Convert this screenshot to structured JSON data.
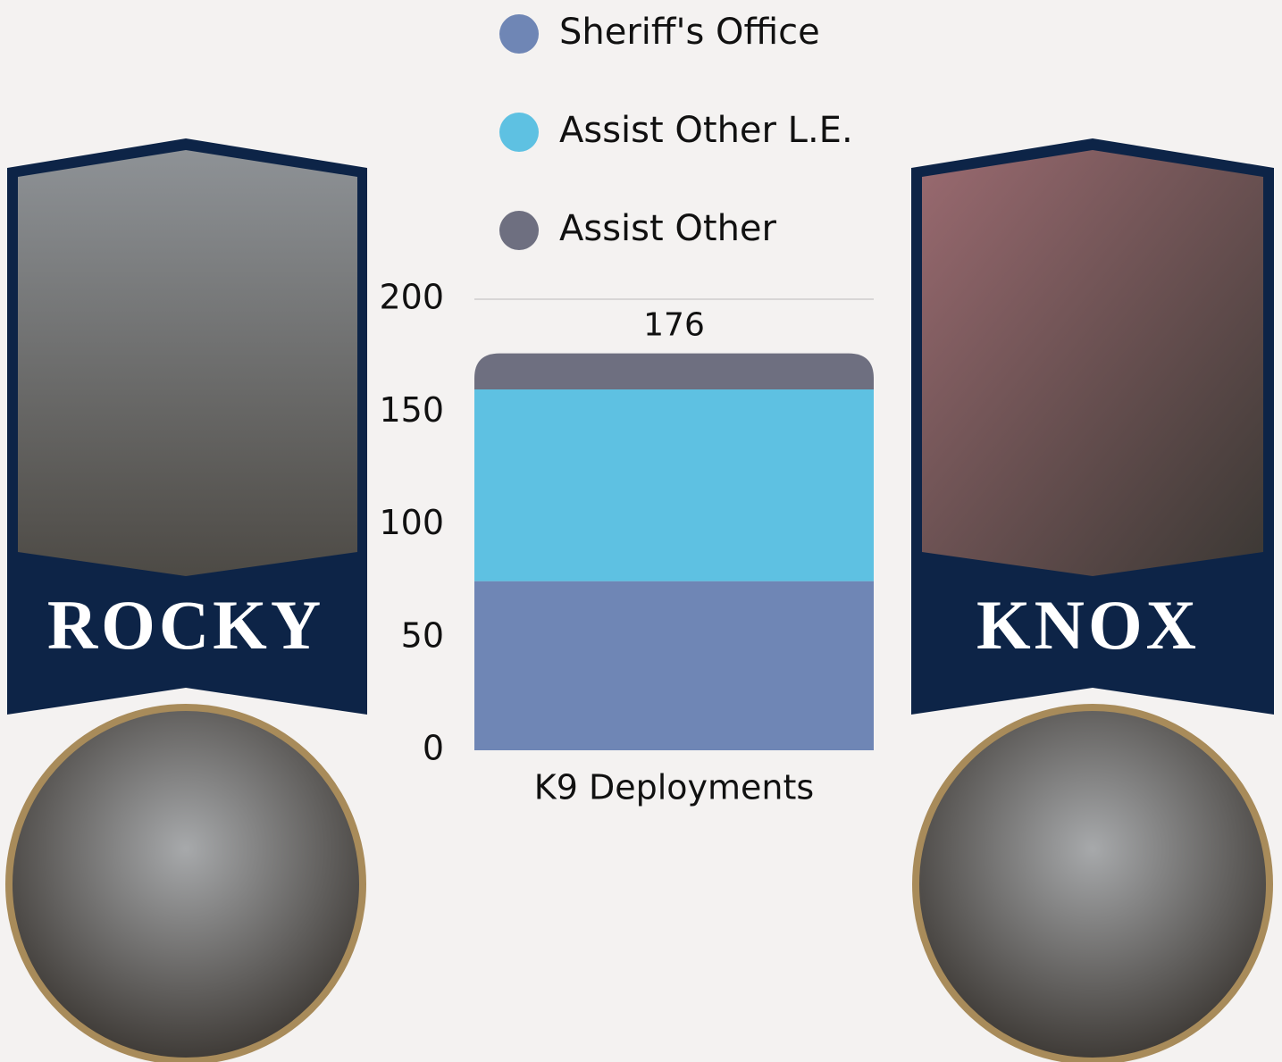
{
  "chart_data": {
    "type": "stacked_bar",
    "categories": [
      "K9 Deployments"
    ],
    "series": [
      {
        "name": "Sheriff's Office",
        "color": "#6f86b5",
        "values": [
          75
        ]
      },
      {
        "name": "Assist Other L.E.",
        "color": "#5ec1e2",
        "values": [
          85
        ]
      },
      {
        "name": "Assist Other",
        "color": "#6e6f80",
        "values": [
          16
        ]
      }
    ],
    "totals": [
      176
    ],
    "ylim": [
      0,
      200
    ],
    "yticks": [
      0,
      50,
      100,
      150,
      200
    ]
  },
  "handlers": [
    {
      "dog": "ROCKY"
    },
    {
      "dog": "KNOX"
    }
  ]
}
